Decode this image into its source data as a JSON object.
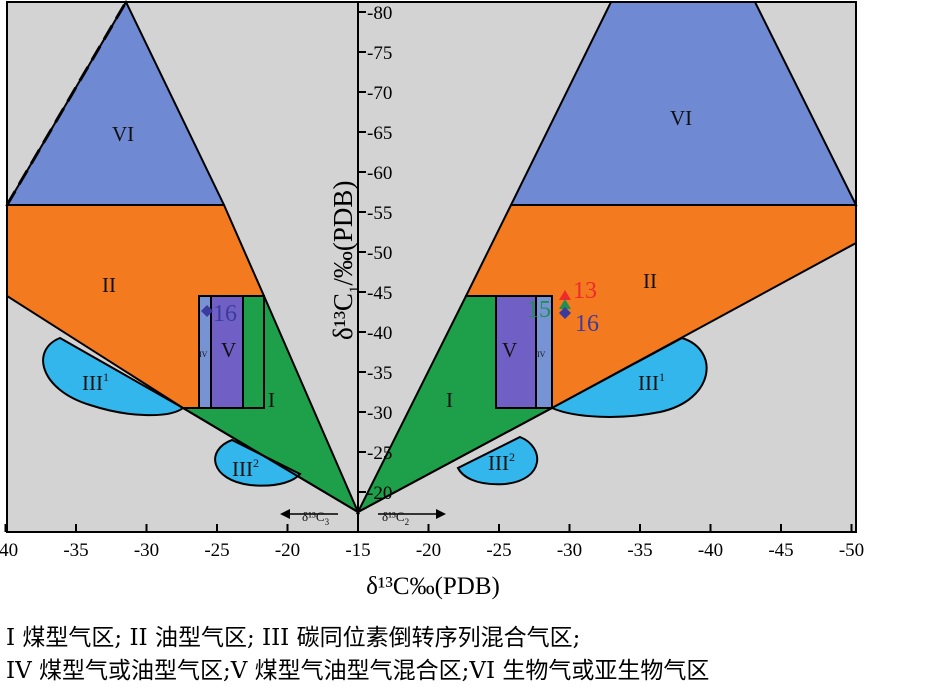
{
  "colors": {
    "background": "#d3d3d3",
    "zone_I": "#1ea04b",
    "zone_II": "#f47a20",
    "zone_III": "#33b6ec",
    "zone_IV": "#7893d4",
    "zone_V": "#7060c6",
    "zone_VI": "#6f8ad3",
    "sample_13": "#ee2a2a",
    "sample_15": "#1f8f52",
    "sample_16": "#3b3b9e"
  },
  "axes": {
    "x_ticks_left": [
      "-40",
      "-35",
      "-30",
      "-25",
      "-20"
    ],
    "x_tick_center": "-15",
    "x_ticks_right": [
      "-20",
      "-25",
      "-30",
      "-35",
      "-40",
      "-45",
      "-50"
    ],
    "x_label": "δ¹³C‰(PDB)",
    "y_ticks": [
      "-80",
      "-75",
      "-70",
      "-65",
      "-60",
      "-55",
      "-50",
      "-45",
      "-40",
      "-35",
      "-30",
      "-25",
      "-20"
    ],
    "y_label_main": "δ¹³C",
    "y_label_sub": "1",
    "y_label_rest": "/‰(PDB)",
    "left_axis_caption": "δ¹³C",
    "left_axis_caption_sub": "3",
    "right_axis_caption": "δ¹³C",
    "right_axis_caption_sub": "2"
  },
  "regions": {
    "I": "I",
    "II": "II",
    "III": "III",
    "III_sup": "1",
    "III2_sup": "2",
    "IV": "IV",
    "V": "V",
    "VI": "VI"
  },
  "samples": {
    "s13": "13",
    "s15": "15",
    "s16": "16"
  },
  "caption": {
    "line1": "I 煤型气区; II 油型气区; III 碳同位素倒转序列混合气区;",
    "line2": "IV 煤型气或油型气区;V 煤型气油型气混合区;VI 生物气或亚生物气区"
  }
}
